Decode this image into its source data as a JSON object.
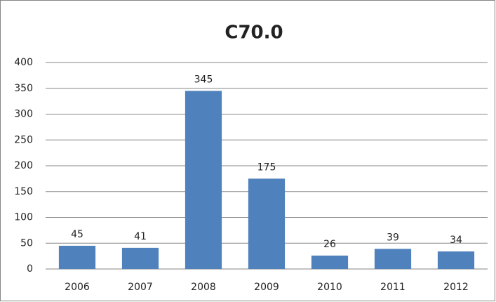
{
  "chart_data": {
    "type": "bar",
    "title": "C70.0",
    "categories": [
      "2006",
      "2007",
      "2008",
      "2009",
      "2010",
      "2011",
      "2012"
    ],
    "values": [
      45,
      41,
      345,
      175,
      26,
      39,
      34
    ],
    "color": "#4f81bd",
    "ylim": [
      0,
      400
    ],
    "yticks": [
      0,
      50,
      100,
      150,
      200,
      250,
      300,
      350,
      400
    ],
    "grid": true
  }
}
